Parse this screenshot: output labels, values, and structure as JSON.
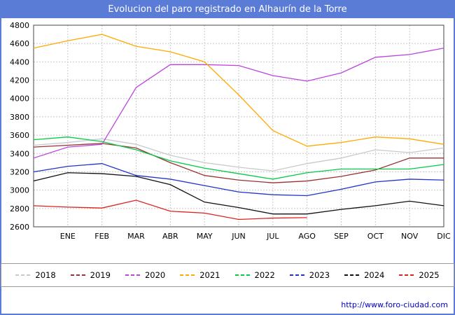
{
  "window": {
    "title": "Evolucion del paro registrado en Alhaurín de la Torre"
  },
  "footer": {
    "url": "http://www.foro-ciudad.com"
  },
  "chart_data": {
    "type": "line",
    "title": "Evolucion del paro registrado en Alhaurín de la Torre",
    "xlabel": "",
    "ylabel": "",
    "x_labels": [
      "ENE",
      "FEB",
      "MAR",
      "ABR",
      "MAY",
      "JUN",
      "JUL",
      "AGO",
      "SEP",
      "OCT",
      "NOV",
      "DIC"
    ],
    "ylim": [
      2600,
      4800
    ],
    "y_tick_step": 200,
    "grid": true,
    "legend_position": "bottom",
    "axis_note": "axis_start is the value drawn at the y-axis (point before ENE)",
    "series": [
      {
        "name": "2018",
        "color": "#c9c9c9",
        "axis_start": 3490,
        "values": [
          3520,
          3560,
          3500,
          3380,
          3300,
          3250,
          3210,
          3290,
          3350,
          3440,
          3410,
          3460
        ]
      },
      {
        "name": "2019",
        "color": "#993333",
        "axis_start": 3470,
        "values": [
          3490,
          3510,
          3460,
          3300,
          3160,
          3110,
          3080,
          3100,
          3150,
          3220,
          3350,
          3350
        ]
      },
      {
        "name": "2020",
        "color": "#bb44dd",
        "axis_start": 3350,
        "values": [
          3470,
          3500,
          4120,
          4370,
          4370,
          4360,
          4250,
          4190,
          4280,
          4450,
          4480,
          4550
        ]
      },
      {
        "name": "2021",
        "color": "#ffaa00",
        "axis_start": 4550,
        "values": [
          4630,
          4700,
          4570,
          4510,
          4400,
          4040,
          3650,
          3480,
          3520,
          3580,
          3560,
          3500
        ]
      },
      {
        "name": "2022",
        "color": "#00cc44",
        "axis_start": 3550,
        "values": [
          3580,
          3530,
          3440,
          3320,
          3240,
          3180,
          3120,
          3190,
          3230,
          3230,
          3230,
          3280
        ]
      },
      {
        "name": "2023",
        "color": "#2233cc",
        "axis_start": 3200,
        "values": [
          3260,
          3290,
          3160,
          3120,
          3050,
          2980,
          2950,
          2940,
          3010,
          3090,
          3120,
          3110
        ]
      },
      {
        "name": "2024",
        "color": "#111111",
        "axis_start": 3100,
        "values": [
          3190,
          3180,
          3150,
          3060,
          2870,
          2810,
          2740,
          2740,
          2790,
          2830,
          2880,
          2830
        ]
      },
      {
        "name": "2025",
        "color": "#dd2222",
        "axis_start": 2830,
        "values": [
          2815,
          2805,
          2890,
          2770,
          2750,
          2680,
          2695,
          2700
        ]
      }
    ]
  }
}
